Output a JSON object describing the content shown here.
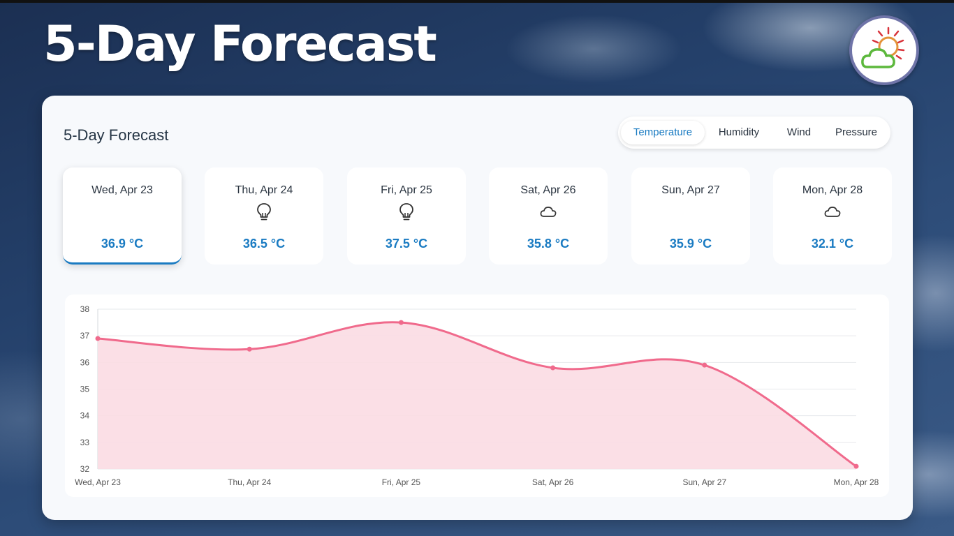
{
  "hero": {
    "title": "5-Day Forecast"
  },
  "logo": {
    "icon": "sun-cloud-icon"
  },
  "panel": {
    "title": "5-Day Forecast",
    "tabs": [
      {
        "label": "Temperature",
        "active": true
      },
      {
        "label": "Humidity",
        "active": false
      },
      {
        "label": "Wind",
        "active": false
      },
      {
        "label": "Pressure",
        "active": false
      }
    ]
  },
  "days": [
    {
      "date": "Wed, Apr 23",
      "icon": "none",
      "temp": "36.9 °C",
      "selected": true
    },
    {
      "date": "Thu, Apr 24",
      "icon": "lightbulb-icon",
      "temp": "36.5 °C",
      "selected": false
    },
    {
      "date": "Fri, Apr 25",
      "icon": "lightbulb-icon",
      "temp": "37.5 °C",
      "selected": false
    },
    {
      "date": "Sat, Apr 26",
      "icon": "cloud-icon",
      "temp": "35.8 °C",
      "selected": false
    },
    {
      "date": "Sun, Apr 27",
      "icon": "none",
      "temp": "35.9 °C",
      "selected": false
    },
    {
      "date": "Mon, Apr 28",
      "icon": "cloud-icon",
      "temp": "32.1 °C",
      "selected": false
    }
  ],
  "colors": {
    "accent": "#1a7bc2",
    "line": "#f06a8c",
    "fill": "#fbdbe3"
  },
  "chart_data": {
    "type": "area",
    "categories": [
      "Wed, Apr 23",
      "Thu, Apr 24",
      "Fri, Apr 25",
      "Sat, Apr 26",
      "Sun, Apr 27",
      "Mon, Apr 28"
    ],
    "series": [
      {
        "values": [
          36.9,
          36.5,
          37.5,
          35.8,
          35.9,
          32.1
        ]
      }
    ],
    "ylim": [
      32,
      38
    ],
    "yticks": [
      32,
      33,
      34,
      35,
      36,
      37,
      38
    ],
    "grid": true,
    "legend": "none",
    "title": "",
    "xlabel": "",
    "ylabel": ""
  }
}
